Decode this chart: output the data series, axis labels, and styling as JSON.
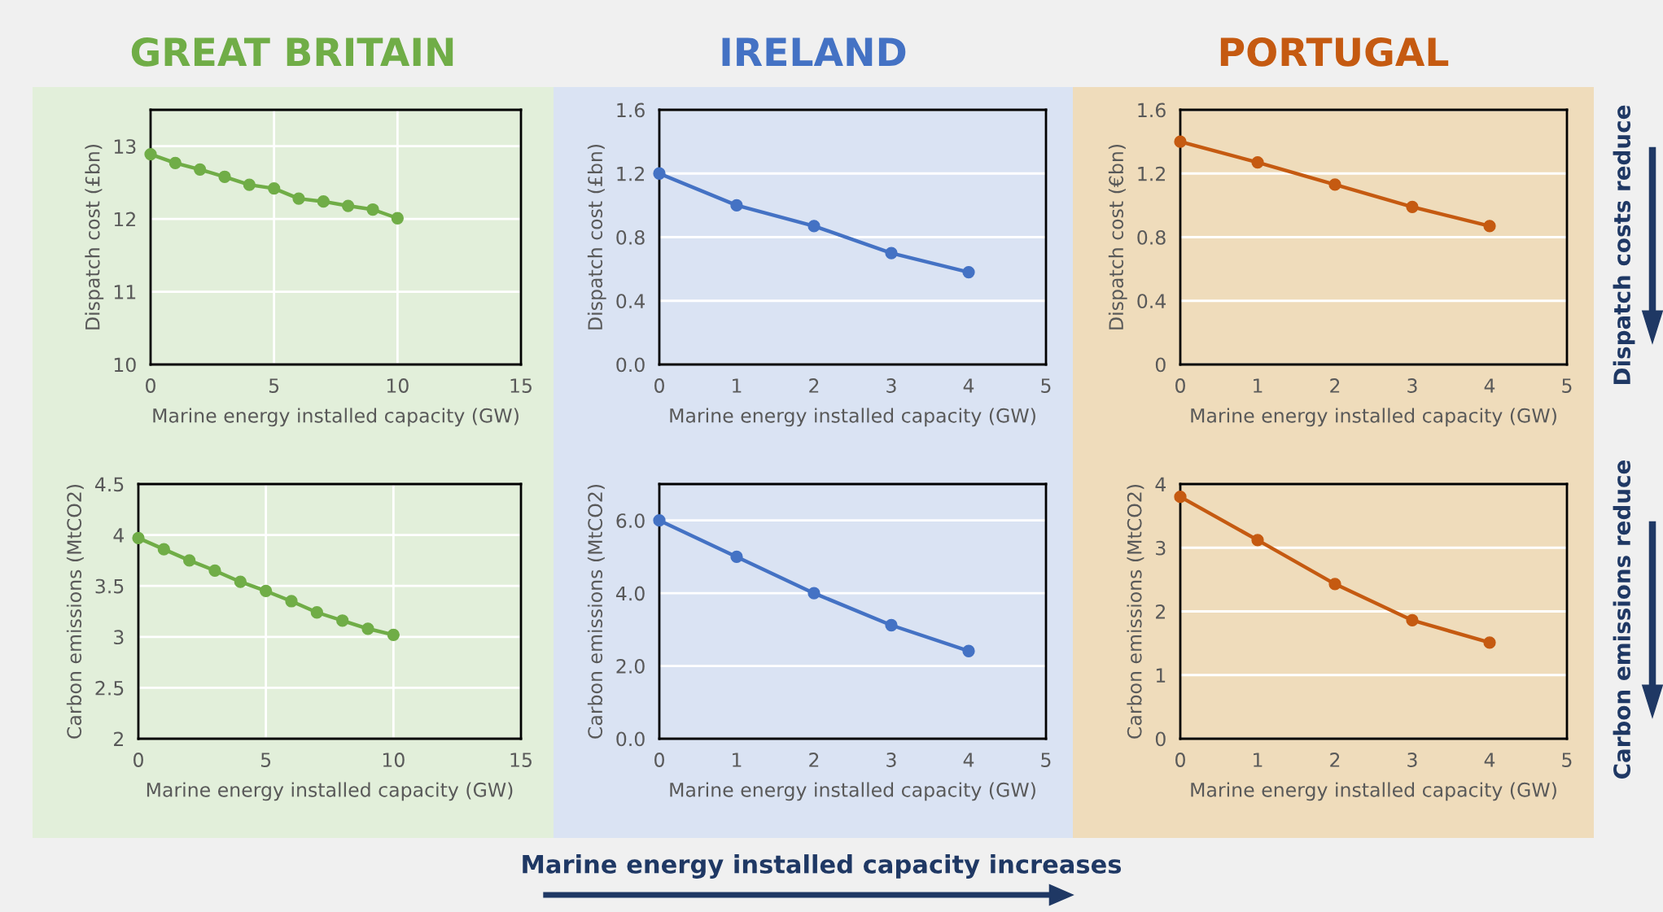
{
  "chart_data": [
    {
      "type": "line",
      "title": "GREAT BRITAIN",
      "ylabel": "Dispatch cost (£bn)",
      "xlabel": "Marine energy installed capacity (GW)",
      "marker": "circle",
      "line_style": "solid",
      "grid": true,
      "x": [
        0,
        1,
        2,
        3,
        4,
        5,
        6,
        7,
        8,
        9,
        10
      ],
      "series": [
        {
          "color": "#70ad47",
          "values": [
            12.89,
            12.77,
            12.68,
            12.58,
            12.47,
            12.42,
            12.28,
            12.24,
            12.18,
            12.13,
            12.01
          ]
        }
      ],
      "xlim": [
        0,
        15
      ],
      "xticks": [
        0,
        5,
        10,
        15
      ],
      "ylim": [
        10,
        13.5
      ],
      "yticks": [
        10,
        11,
        12,
        13
      ]
    },
    {
      "type": "line",
      "title": "IRELAND",
      "ylabel": "Dispatch cost (£bn)",
      "xlabel": "Marine energy installed capacity (GW)",
      "marker": "circle",
      "line_style": "solid",
      "grid": "y",
      "x": [
        0,
        1,
        2,
        3,
        4
      ],
      "series": [
        {
          "color": "#4472c4",
          "values": [
            1.2,
            1.0,
            0.87,
            0.7,
            0.58
          ]
        }
      ],
      "xlim": [
        0,
        5
      ],
      "xticks": [
        0,
        1,
        2,
        3,
        4,
        5
      ],
      "ylim": [
        0,
        1.6
      ],
      "yticks": [
        {
          "value": 0,
          "label": "0.0"
        },
        0.4,
        0.8,
        1.2,
        1.6
      ]
    },
    {
      "type": "line",
      "title": "PORTUGAL",
      "ylabel": "Dispatch cost (€bn)",
      "xlabel": "Marine energy installed capacity (GW)",
      "marker": "circle",
      "line_style": "solid",
      "grid": "y",
      "x": [
        0,
        1,
        2,
        3,
        4
      ],
      "series": [
        {
          "color": "#c55a11",
          "values": [
            1.4,
            1.27,
            1.13,
            0.99,
            0.87
          ]
        }
      ],
      "xlim": [
        0,
        5
      ],
      "xticks": [
        0,
        1,
        2,
        3,
        4,
        5
      ],
      "ylim": [
        0,
        1.6
      ],
      "yticks": [
        0,
        0.4,
        0.8,
        1.2,
        1.6
      ],
      "annotations": [
        "Dispatch costs reduce"
      ]
    },
    {
      "type": "line",
      "ylabel": "Carbon emissions (MtCO2)",
      "xlabel": "Marine energy installed capacity (GW)",
      "marker": "circle",
      "line_style": "solid",
      "grid": true,
      "x": [
        0,
        1,
        2,
        3,
        4,
        5,
        6,
        7,
        8,
        9,
        10
      ],
      "series": [
        {
          "color": "#70ad47",
          "values": [
            3.97,
            3.86,
            3.75,
            3.65,
            3.54,
            3.45,
            3.35,
            3.24,
            3.16,
            3.08,
            3.02
          ]
        }
      ],
      "xlim": [
        0,
        15
      ],
      "xticks": [
        0,
        5,
        10,
        15
      ],
      "ylim": [
        2,
        4.5
      ],
      "yticks": [
        2,
        2.5,
        3,
        3.5,
        4,
        4.5
      ]
    },
    {
      "type": "line",
      "ylabel": "Carbon emissions (MtCO2)",
      "xlabel": "Marine energy installed capacity (GW)",
      "marker": "circle",
      "line_style": "solid",
      "grid": "y",
      "x": [
        0,
        1,
        2,
        3,
        4
      ],
      "series": [
        {
          "color": "#4472c4",
          "values": [
            6.0,
            5.0,
            4.0,
            3.12,
            2.41
          ]
        }
      ],
      "xlim": [
        0,
        5
      ],
      "xticks": [
        0,
        1,
        2,
        3,
        4,
        5
      ],
      "ylim": [
        0,
        7
      ],
      "yticks": [
        {
          "value": 0,
          "label": "0.0"
        },
        {
          "value": 2,
          "label": "2.0"
        },
        {
          "value": 4,
          "label": "4.0"
        },
        {
          "value": 6,
          "label": "6.0"
        }
      ],
      "annotations": [
        "Marine energy installed capacity increases"
      ]
    },
    {
      "type": "line",
      "ylabel": "Carbon emissions (MtCO2)",
      "xlabel": "Marine energy installed capacity (GW)",
      "marker": "circle",
      "line_style": "solid",
      "grid": "y",
      "x": [
        0,
        1,
        2,
        3,
        4
      ],
      "series": [
        {
          "color": "#c55a11",
          "values": [
            3.8,
            3.12,
            2.43,
            1.86,
            1.51
          ]
        }
      ],
      "xlim": [
        0,
        5
      ],
      "xticks": [
        0,
        1,
        2,
        3,
        4,
        5
      ],
      "ylim": [
        0,
        4
      ],
      "yticks": [
        0,
        1,
        2,
        3,
        4
      ],
      "annotations": [
        "Carbon emissions reduce"
      ]
    }
  ]
}
